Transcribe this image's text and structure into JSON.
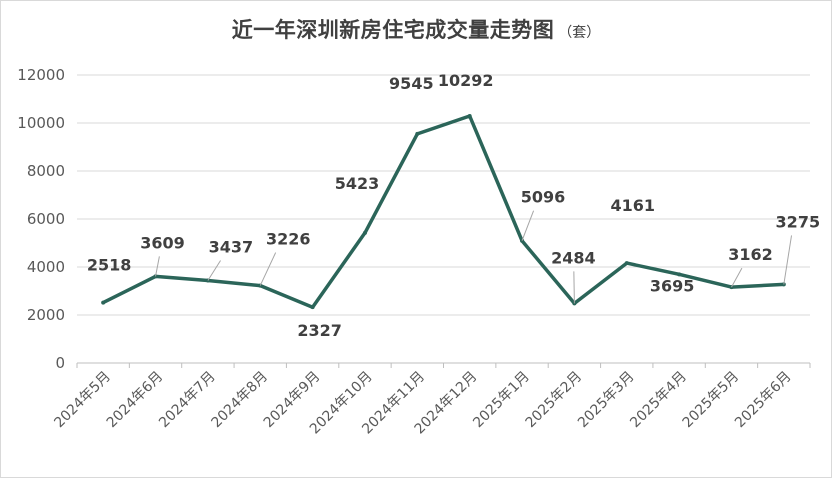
{
  "chart_data": {
    "type": "line",
    "title": "近一年深圳新房住宅成交量走势图",
    "subtitle": "（套）",
    "categories": [
      "2024年5月",
      "2024年6月",
      "2024年7月",
      "2024年8月",
      "2024年9月",
      "2024年10月",
      "2024年11月",
      "2024年12月",
      "2025年1月",
      "2025年2月",
      "2025年3月",
      "2025年4月",
      "2025年5月",
      "2025年6月"
    ],
    "series": [
      {
        "values": [
          2518,
          3609,
          3437,
          3226,
          2327,
          5423,
          9545,
          10292,
          5096,
          2484,
          4161,
          3695,
          3162,
          3275
        ]
      }
    ],
    "data_labels": [
      "2518",
      "3609",
      "3437",
      "3226",
      "2327",
      "5423",
      "9545",
      "10292",
      "5096",
      "2484",
      "4161",
      "3695",
      "3162",
      "3275"
    ],
    "yticks": [
      "0",
      "2000",
      "4000",
      "6000",
      "8000",
      "10000",
      "12000"
    ],
    "ylim": [
      0,
      12000
    ],
    "xlabel": "",
    "ylabel": "",
    "grid": true,
    "legend": "none",
    "line_color": "#2b6559"
  }
}
